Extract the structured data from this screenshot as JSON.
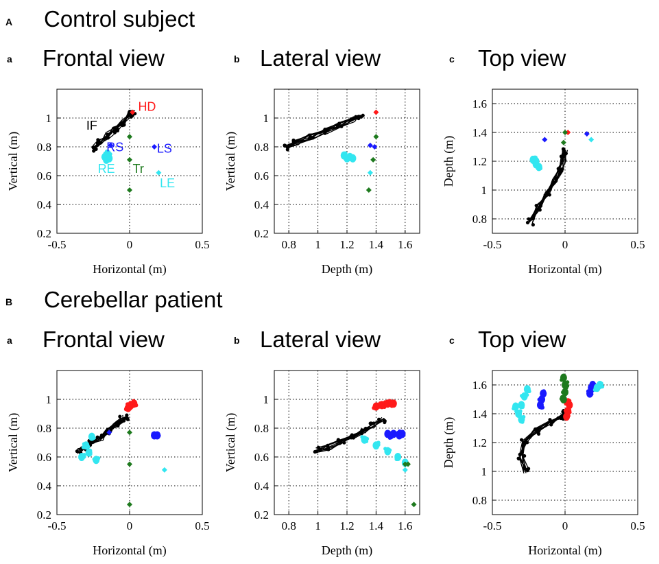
{
  "figure": {
    "section_a_letter": "A",
    "section_a_title": "Control subject",
    "section_b_letter": "B",
    "section_b_title": "Cerebellar patient",
    "panel_letters": [
      "a",
      "b",
      "c"
    ]
  },
  "colors": {
    "IF": "#000000",
    "HD": "#ff1a1a",
    "RS": "#1a1aff",
    "LS": "#1a1aff",
    "RE": "#33e6f0",
    "LE": "#33e6f0",
    "Tr": "#1e7a1e"
  },
  "chart_data": [
    {
      "id": "control-frontal",
      "type": "scatter",
      "title": "Frontal view",
      "xlabel": "Horizontal (m)",
      "ylabel": "Vertical (m)",
      "xlim": [
        -0.5,
        0.5
      ],
      "ylim": [
        0.2,
        1.2
      ],
      "xticks": [
        -0.5,
        0,
        0.5
      ],
      "yticks": [
        0.2,
        0.4,
        0.6,
        0.8,
        1.0
      ],
      "xtick_labels": [
        "-0.5",
        "0",
        "0.5"
      ],
      "ytick_labels": [
        "0.2",
        "0.4",
        "0.6",
        "0.8",
        "1"
      ],
      "series": [
        {
          "name": "IF",
          "color": "#000000",
          "kind": "trajectory",
          "points": [
            [
              -0.24,
              0.79
            ],
            [
              -0.2,
              0.83
            ],
            [
              -0.15,
              0.88
            ],
            [
              -0.1,
              0.92
            ],
            [
              -0.05,
              0.97
            ],
            [
              0.0,
              1.02
            ],
            [
              0.02,
              1.04
            ]
          ]
        },
        {
          "name": "HD",
          "color": "#ff1a1a",
          "kind": "marker",
          "points": [
            [
              0.02,
              1.04
            ]
          ]
        },
        {
          "name": "RS",
          "color": "#1a1aff",
          "kind": "marker",
          "points": [
            [
              -0.13,
              0.81
            ]
          ]
        },
        {
          "name": "LS",
          "color": "#1a1aff",
          "kind": "marker",
          "points": [
            [
              0.17,
              0.8
            ]
          ]
        },
        {
          "name": "RE",
          "color": "#33e6f0",
          "kind": "cluster",
          "points": [
            [
              -0.17,
              0.73
            ],
            [
              -0.15,
              0.75
            ],
            [
              -0.14,
              0.72
            ],
            [
              -0.16,
              0.71
            ]
          ]
        },
        {
          "name": "LE",
          "color": "#33e6f0",
          "kind": "marker",
          "points": [
            [
              0.2,
              0.62
            ]
          ]
        },
        {
          "name": "Tr",
          "color": "#1e7a1e",
          "kind": "marker",
          "points": [
            [
              0.0,
              0.87
            ],
            [
              0.0,
              0.71
            ],
            [
              0.0,
              0.5
            ]
          ]
        }
      ],
      "annotations": [
        {
          "text": "IF",
          "x": -0.26,
          "y": 0.92,
          "color": "#000000"
        },
        {
          "text": "HD",
          "x": 0.12,
          "y": 1.05,
          "color": "#ff1a1a"
        },
        {
          "text": "RS",
          "x": -0.1,
          "y": 0.77,
          "color": "#1a1aff"
        },
        {
          "text": "LS",
          "x": 0.24,
          "y": 0.76,
          "color": "#1a1aff"
        },
        {
          "text": "RE",
          "x": -0.16,
          "y": 0.62,
          "color": "#33e6f0"
        },
        {
          "text": "Tr",
          "x": 0.06,
          "y": 0.62,
          "color": "#1e7a1e"
        },
        {
          "text": "LE",
          "x": 0.26,
          "y": 0.52,
          "color": "#33e6f0"
        }
      ]
    },
    {
      "id": "control-lateral",
      "type": "scatter",
      "title": "Lateral view",
      "xlabel": "Depth (m)",
      "ylabel": "Vertical (m)",
      "xlim": [
        0.7,
        1.7
      ],
      "ylim": [
        0.2,
        1.2
      ],
      "xticks": [
        0.8,
        1.0,
        1.2,
        1.4,
        1.6
      ],
      "yticks": [
        0.2,
        0.4,
        0.6,
        0.8,
        1.0
      ],
      "xtick_labels": [
        "0.8",
        "1",
        "1.2",
        "1.4",
        "1.6"
      ],
      "ytick_labels": [
        "0.2",
        "0.4",
        "0.6",
        "0.8",
        "1"
      ],
      "series": [
        {
          "name": "IF",
          "color": "#000000",
          "kind": "trajectory",
          "points": [
            [
              0.79,
              0.8
            ],
            [
              0.85,
              0.83
            ],
            [
              0.95,
              0.87
            ],
            [
              1.05,
              0.91
            ],
            [
              1.15,
              0.95
            ],
            [
              1.25,
              0.99
            ],
            [
              1.3,
              1.01
            ]
          ]
        },
        {
          "name": "HD",
          "color": "#ff1a1a",
          "kind": "marker",
          "points": [
            [
              1.4,
              1.04
            ]
          ]
        },
        {
          "name": "RS",
          "color": "#1a1aff",
          "kind": "marker",
          "points": [
            [
              1.36,
              0.81
            ]
          ]
        },
        {
          "name": "LS",
          "color": "#1a1aff",
          "kind": "marker",
          "points": [
            [
              1.39,
              0.8
            ]
          ]
        },
        {
          "name": "RE",
          "color": "#33e6f0",
          "kind": "cluster",
          "points": [
            [
              1.18,
              0.74
            ],
            [
              1.2,
              0.72
            ],
            [
              1.22,
              0.73
            ],
            [
              1.24,
              0.72
            ]
          ]
        },
        {
          "name": "LE",
          "color": "#33e6f0",
          "kind": "marker",
          "points": [
            [
              1.36,
              0.62
            ]
          ]
        },
        {
          "name": "Tr",
          "color": "#1e7a1e",
          "kind": "marker",
          "points": [
            [
              1.4,
              0.87
            ],
            [
              1.38,
              0.71
            ],
            [
              1.35,
              0.5
            ]
          ]
        }
      ]
    },
    {
      "id": "control-top",
      "type": "scatter",
      "title": "Top view",
      "xlabel": "Horizontal (m)",
      "ylabel": "Depth (m)",
      "xlim": [
        -0.5,
        0.5
      ],
      "ylim": [
        0.7,
        1.7
      ],
      "xticks": [
        -0.5,
        0,
        0.5
      ],
      "yticks": [
        0.8,
        1.0,
        1.2,
        1.4,
        1.6
      ],
      "xtick_labels": [
        "-0.5",
        "0",
        "0.5"
      ],
      "ytick_labels": [
        "0.8",
        "1",
        "1.2",
        "1.4",
        "1.6"
      ],
      "series": [
        {
          "name": "IF",
          "color": "#000000",
          "kind": "trajectory",
          "points": [
            [
              -0.24,
              0.78
            ],
            [
              -0.18,
              0.88
            ],
            [
              -0.12,
              0.98
            ],
            [
              -0.07,
              1.06
            ],
            [
              -0.03,
              1.14
            ],
            [
              -0.01,
              1.22
            ],
            [
              0.0,
              1.27
            ]
          ]
        },
        {
          "name": "HD",
          "color": "#ff1a1a",
          "kind": "marker",
          "points": [
            [
              0.02,
              1.4
            ]
          ]
        },
        {
          "name": "RS",
          "color": "#1a1aff",
          "kind": "marker",
          "points": [
            [
              -0.14,
              1.35
            ]
          ]
        },
        {
          "name": "LS",
          "color": "#1a1aff",
          "kind": "marker",
          "points": [
            [
              0.15,
              1.39
            ]
          ]
        },
        {
          "name": "RE",
          "color": "#33e6f0",
          "kind": "cluster",
          "points": [
            [
              -0.22,
              1.21
            ],
            [
              -0.2,
              1.18
            ],
            [
              -0.18,
              1.16
            ],
            [
              -0.2,
              1.2
            ]
          ]
        },
        {
          "name": "LE",
          "color": "#33e6f0",
          "kind": "marker",
          "points": [
            [
              0.18,
              1.35
            ]
          ]
        },
        {
          "name": "Tr",
          "color": "#1e7a1e",
          "kind": "marker",
          "points": [
            [
              0.0,
              1.4
            ],
            [
              -0.01,
              1.33
            ]
          ]
        }
      ]
    },
    {
      "id": "patient-frontal",
      "type": "scatter",
      "title": "Frontal view",
      "xlabel": "Horizontal (m)",
      "ylabel": "Vertical (m)",
      "xlim": [
        -0.5,
        0.5
      ],
      "ylim": [
        0.2,
        1.2
      ],
      "xticks": [
        -0.5,
        0,
        0.5
      ],
      "yticks": [
        0.2,
        0.4,
        0.6,
        0.8,
        1.0
      ],
      "xtick_labels": [
        "-0.5",
        "0",
        "0.5"
      ],
      "ytick_labels": [
        "0.2",
        "0.4",
        "0.6",
        "0.8",
        "1"
      ],
      "series": [
        {
          "name": "IF",
          "color": "#000000",
          "kind": "trajectory",
          "points": [
            [
              -0.35,
              0.64
            ],
            [
              -0.3,
              0.67
            ],
            [
              -0.26,
              0.7
            ],
            [
              -0.2,
              0.73
            ],
            [
              -0.15,
              0.78
            ],
            [
              -0.1,
              0.82
            ],
            [
              -0.05,
              0.86
            ],
            [
              -0.03,
              0.88
            ]
          ]
        },
        {
          "name": "HD",
          "color": "#ff1a1a",
          "kind": "cluster",
          "points": [
            [
              -0.01,
              0.94
            ],
            [
              0.01,
              0.96
            ],
            [
              0.03,
              0.97
            ],
            [
              0.0,
              0.95
            ]
          ]
        },
        {
          "name": "RS",
          "color": "#1a1aff",
          "kind": "marker",
          "points": [
            [
              -0.14,
              0.77
            ]
          ]
        },
        {
          "name": "LS",
          "color": "#1a1aff",
          "kind": "cluster",
          "points": [
            [
              0.17,
              0.75
            ],
            [
              0.19,
              0.75
            ]
          ]
        },
        {
          "name": "RE",
          "color": "#33e6f0",
          "kind": "cluster",
          "points": [
            [
              -0.33,
              0.6
            ],
            [
              -0.3,
              0.68
            ],
            [
              -0.26,
              0.74
            ],
            [
              -0.28,
              0.63
            ],
            [
              -0.23,
              0.58
            ]
          ]
        },
        {
          "name": "LE",
          "color": "#33e6f0",
          "kind": "marker",
          "points": [
            [
              0.24,
              0.51
            ]
          ]
        },
        {
          "name": "Tr",
          "color": "#1e7a1e",
          "kind": "marker",
          "points": [
            [
              0.0,
              0.77
            ],
            [
              0.0,
              0.55
            ],
            [
              0.0,
              0.27
            ]
          ]
        }
      ]
    },
    {
      "id": "patient-lateral",
      "type": "scatter",
      "title": "Lateral view",
      "xlabel": "Depth (m)",
      "ylabel": "Vertical (m)",
      "xlim": [
        0.7,
        1.7
      ],
      "ylim": [
        0.2,
        1.2
      ],
      "xticks": [
        0.8,
        1.0,
        1.2,
        1.4,
        1.6
      ],
      "yticks": [
        0.2,
        0.4,
        0.6,
        0.8,
        1.0
      ],
      "xtick_labels": [
        "0.8",
        "1",
        "1.2",
        "1.4",
        "1.6"
      ],
      "ytick_labels": [
        "0.2",
        "0.4",
        "0.6",
        "0.8",
        "1"
      ],
      "series": [
        {
          "name": "IF",
          "color": "#000000",
          "kind": "trajectory",
          "points": [
            [
              1.0,
              0.65
            ],
            [
              1.08,
              0.67
            ],
            [
              1.16,
              0.7
            ],
            [
              1.24,
              0.74
            ],
            [
              1.32,
              0.78
            ],
            [
              1.38,
              0.82
            ],
            [
              1.44,
              0.86
            ]
          ]
        },
        {
          "name": "HD",
          "color": "#ff1a1a",
          "kind": "cluster",
          "points": [
            [
              1.4,
              0.95
            ],
            [
              1.44,
              0.96
            ],
            [
              1.48,
              0.97
            ],
            [
              1.52,
              0.97
            ]
          ]
        },
        {
          "name": "RS",
          "color": "#1a1aff",
          "kind": "cluster",
          "points": [
            [
              1.48,
              0.76
            ],
            [
              1.52,
              0.76
            ],
            [
              1.56,
              0.75
            ]
          ]
        },
        {
          "name": "LS",
          "color": "#1a1aff",
          "kind": "cluster",
          "points": [
            [
              1.5,
              0.75
            ],
            [
              1.58,
              0.76
            ]
          ]
        },
        {
          "name": "RE",
          "color": "#33e6f0",
          "kind": "cluster",
          "points": [
            [
              1.32,
              0.72
            ],
            [
              1.4,
              0.68
            ],
            [
              1.48,
              0.64
            ],
            [
              1.55,
              0.6
            ],
            [
              1.6,
              0.56
            ]
          ]
        },
        {
          "name": "LE",
          "color": "#33e6f0",
          "kind": "marker",
          "points": [
            [
              1.6,
              0.51
            ]
          ]
        },
        {
          "name": "Tr",
          "color": "#1e7a1e",
          "kind": "marker",
          "points": [
            [
              1.6,
              0.55
            ],
            [
              1.62,
              0.55
            ],
            [
              1.66,
              0.27
            ]
          ]
        }
      ]
    },
    {
      "id": "patient-top",
      "type": "scatter",
      "title": "Top view",
      "xlabel": "Horizontal (m)",
      "ylabel": "Depth (m)",
      "xlim": [
        -0.5,
        0.5
      ],
      "ylim": [
        0.7,
        1.7
      ],
      "xticks": [
        -0.5,
        0,
        0.5
      ],
      "yticks": [
        0.8,
        1.0,
        1.2,
        1.4,
        1.6
      ],
      "xtick_labels": [
        "-0.5",
        "0",
        "0.5"
      ],
      "ytick_labels": [
        "0.8",
        "1",
        "1.2",
        "1.4",
        "1.6"
      ],
      "series": [
        {
          "name": "IF",
          "color": "#000000",
          "kind": "trajectory",
          "points": [
            [
              -0.27,
              1.0
            ],
            [
              -0.3,
              1.1
            ],
            [
              -0.28,
              1.2
            ],
            [
              -0.2,
              1.28
            ],
            [
              -0.1,
              1.34
            ],
            [
              -0.03,
              1.38
            ],
            [
              0.0,
              1.4
            ]
          ]
        },
        {
          "name": "HD",
          "color": "#ff1a1a",
          "kind": "cluster",
          "points": [
            [
              0.01,
              1.38
            ],
            [
              0.02,
              1.42
            ],
            [
              0.03,
              1.46
            ],
            [
              0.02,
              1.48
            ]
          ]
        },
        {
          "name": "RS",
          "color": "#1a1aff",
          "kind": "cluster",
          "points": [
            [
              -0.17,
              1.46
            ],
            [
              -0.16,
              1.5
            ],
            [
              -0.15,
              1.54
            ]
          ]
        },
        {
          "name": "LS",
          "color": "#1a1aff",
          "kind": "cluster",
          "points": [
            [
              0.17,
              1.54
            ],
            [
              0.18,
              1.58
            ],
            [
              0.19,
              1.6
            ]
          ]
        },
        {
          "name": "RE",
          "color": "#33e6f0",
          "kind": "cluster",
          "points": [
            [
              -0.32,
              1.4
            ],
            [
              -0.3,
              1.46
            ],
            [
              -0.28,
              1.52
            ],
            [
              -0.3,
              1.36
            ],
            [
              -0.26,
              1.57
            ],
            [
              -0.34,
              1.45
            ]
          ]
        },
        {
          "name": "LE",
          "color": "#33e6f0",
          "kind": "cluster",
          "points": [
            [
              0.22,
              1.58
            ],
            [
              0.24,
              1.6
            ]
          ]
        },
        {
          "name": "Tr",
          "color": "#1e7a1e",
          "kind": "cluster",
          "points": [
            [
              -0.01,
              1.5
            ],
            [
              0.0,
              1.55
            ],
            [
              0.0,
              1.6
            ],
            [
              -0.01,
              1.65
            ]
          ]
        }
      ]
    }
  ]
}
